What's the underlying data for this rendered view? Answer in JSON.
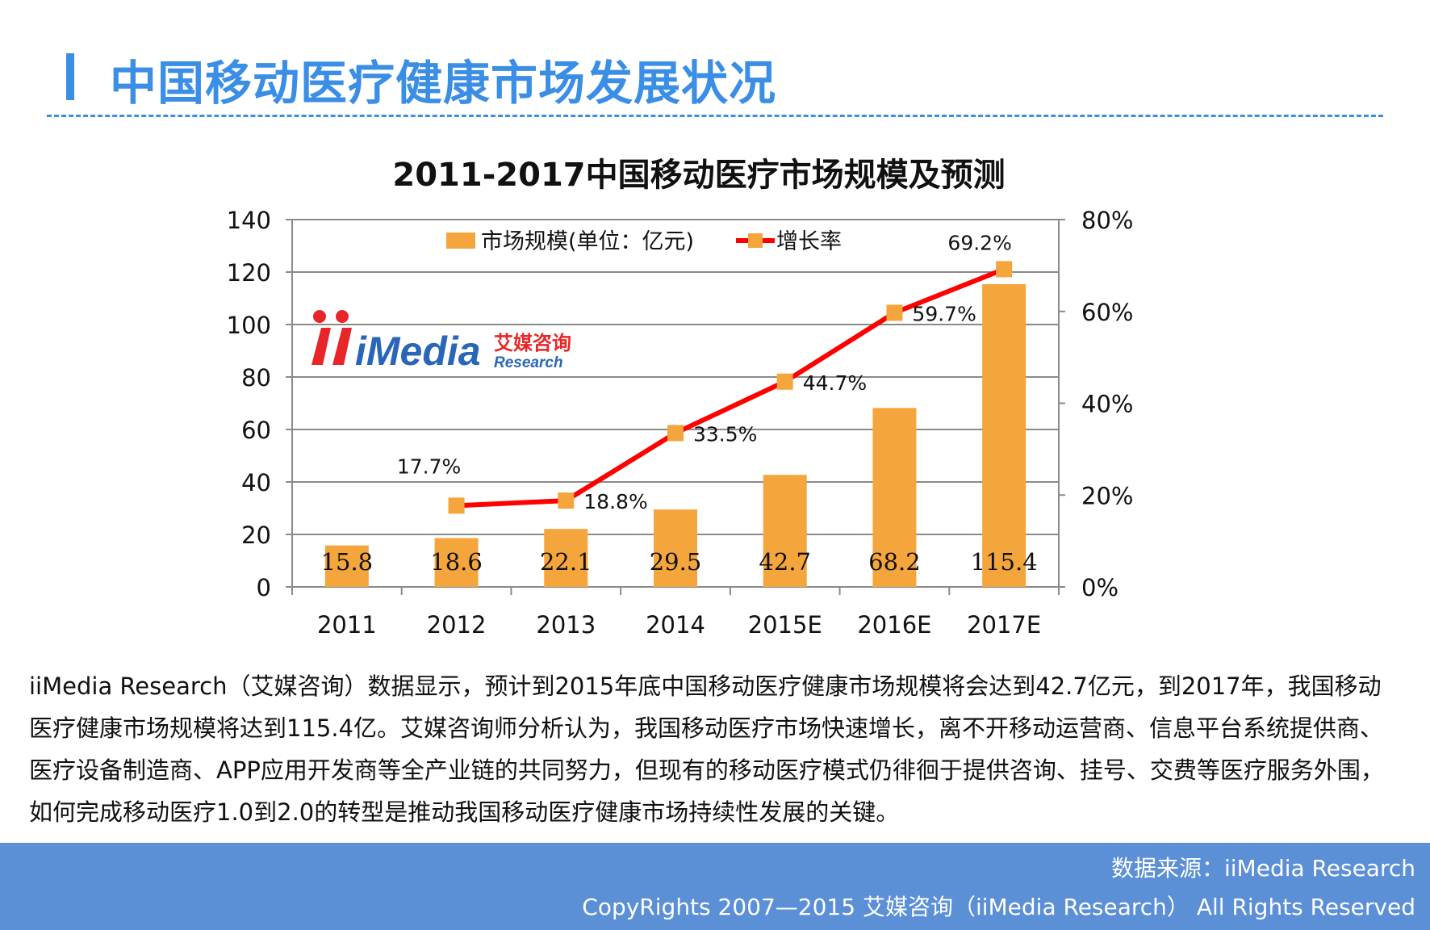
{
  "header": {
    "title": "中国移动医疗健康市场发展状况"
  },
  "colors": {
    "accent": "#3a8ee6",
    "bar": "#f4a53b",
    "line": "#ff0000",
    "marker": "#f4a53b",
    "footer": "#5b8fd6"
  },
  "logo": {
    "brand": "iMedia",
    "cn": "艾媒咨询",
    "en": "Research"
  },
  "chart_data": {
    "type": "bar+line",
    "title": "2011-2017中国移动医疗市场规模及预测",
    "categories": [
      "2011",
      "2012",
      "2013",
      "2014",
      "2015E",
      "2016E",
      "2017E"
    ],
    "series": [
      {
        "name": "市场规模(单位：亿元)",
        "type": "bar",
        "axis": "left",
        "values": [
          15.8,
          18.6,
          22.1,
          29.5,
          42.7,
          68.2,
          115.4
        ],
        "labels": [
          "15.8",
          "18.6",
          "22.1",
          "29.5",
          "42.7",
          "68.2",
          "115.4"
        ]
      },
      {
        "name": "增长率",
        "type": "line",
        "axis": "right",
        "values": [
          null,
          17.7,
          18.8,
          33.5,
          44.7,
          59.7,
          69.2
        ],
        "labels": [
          "",
          "17.7%",
          "18.8%",
          "33.5%",
          "44.7%",
          "59.7%",
          "69.2%"
        ]
      }
    ],
    "y_left": {
      "min": 0,
      "max": 140,
      "ticks": [
        "0",
        "20",
        "40",
        "60",
        "80",
        "100",
        "120",
        "140"
      ]
    },
    "y_right": {
      "min": 0,
      "max": 80,
      "ticks": [
        "0%",
        "20%",
        "40%",
        "60%",
        "80%"
      ]
    },
    "legend": "top-center",
    "grid": true
  },
  "summary": "iiMedia Research（艾媒咨询）数据显示，预计到2015年底中国移动医疗健康市场规模将会达到42.7亿元，到2017年，我国移动医疗健康市场规模将达到115.4亿。艾媒咨询师分析认为，我国移动医疗市场快速增长，离不开移动运营商、信息平台系统提供商、医疗设备制造商、APP应用开发商等全产业链的共同努力，但现有的移动医疗模式仍徘徊于提供咨询、挂号、交费等医疗服务外围，如何完成移动医疗1.0到2.0的转型是推动我国移动医疗健康市场持续性发展的关键。",
  "footer": {
    "source": "数据来源：iiMedia Research",
    "copyright": "CopyRights 2007—2015 艾媒咨询（iiMedia Research） All Rights Reserved"
  }
}
